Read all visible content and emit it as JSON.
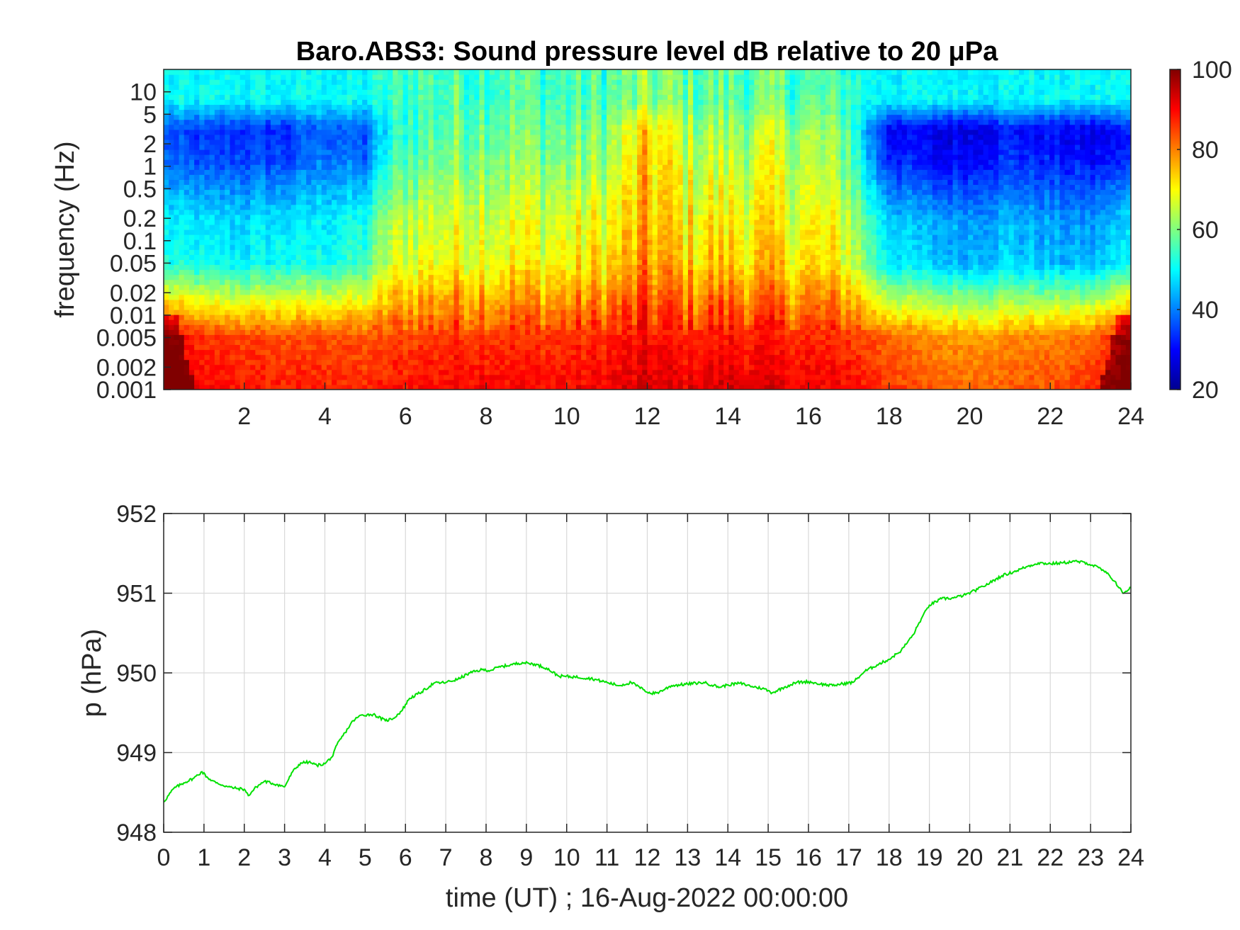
{
  "colors": {
    "trace": "#00e100",
    "grid": "#d9d9d9",
    "axis": "#262626",
    "colormap": "jet"
  },
  "chart_data": [
    {
      "type": "heatmap",
      "title": "Baro.ABS3: Sound pressure level dB relative to 20 μPa",
      "ylabel": "frequency (Hz)",
      "xlabel": "",
      "xlim": [
        0,
        24
      ],
      "ylim": [
        0.001,
        20
      ],
      "yscale": "log",
      "x_ticks": [
        2,
        4,
        6,
        8,
        10,
        12,
        14,
        16,
        18,
        20,
        22,
        24
      ],
      "y_ticks": [
        0.001,
        0.002,
        0.005,
        0.01,
        0.02,
        0.05,
        0.1,
        0.2,
        0.5,
        1,
        2,
        5,
        10
      ],
      "colorbar": {
        "range": [
          20,
          100
        ],
        "ticks": [
          20,
          40,
          60,
          80,
          100
        ],
        "colormap": "jet",
        "position": "right"
      },
      "grid": false,
      "level_profile_db": {
        "hours": [
          0,
          1,
          2,
          3,
          4,
          5,
          5.5,
          6,
          7,
          8,
          9,
          10,
          11,
          12,
          13,
          14,
          15,
          16,
          17,
          17.5,
          18,
          19,
          20,
          21,
          22,
          23,
          24
        ],
        "low_freq_band_0.001_to_0.01Hz": [
          92,
          86,
          85,
          84,
          84,
          83,
          84,
          85,
          86,
          87,
          86,
          86,
          87,
          89,
          88,
          89,
          88,
          87,
          86,
          84,
          82,
          79,
          78,
          79,
          80,
          82,
          90
        ],
        "mid_band_0.02_to_0.2Hz": [
          52,
          50,
          50,
          51,
          52,
          54,
          64,
          68,
          70,
          71,
          70,
          70,
          72,
          78,
          74,
          74,
          73,
          72,
          69,
          58,
          50,
          46,
          45,
          47,
          45,
          44,
          50
        ],
        "upper_band_0.5_to_2Hz": [
          38,
          35,
          36,
          35,
          40,
          38,
          50,
          57,
          60,
          62,
          61,
          60,
          62,
          74,
          66,
          64,
          66,
          64,
          60,
          44,
          33,
          30,
          30,
          34,
          32,
          30,
          33
        ],
        "top_band_5_to_20Hz": [
          50,
          50,
          50,
          50,
          50,
          50,
          53,
          55,
          56,
          57,
          56,
          55,
          56,
          60,
          58,
          57,
          57,
          56,
          55,
          51,
          50,
          50,
          50,
          50,
          50,
          50,
          50
        ]
      },
      "notable_events": [
        {
          "hour": 12,
          "description": "broadband high level"
        },
        {
          "hour": 14,
          "description": "narrow spike"
        }
      ]
    },
    {
      "type": "line",
      "title": "",
      "xlabel": "time (UT) ; 16-Aug-2022 00:00:00",
      "ylabel": "p (hPa)",
      "xlim": [
        0,
        24
      ],
      "ylim": [
        948,
        952
      ],
      "x_ticks": [
        0,
        1,
        2,
        3,
        4,
        5,
        6,
        7,
        8,
        9,
        10,
        11,
        12,
        13,
        14,
        15,
        16,
        17,
        18,
        19,
        20,
        21,
        22,
        23,
        24
      ],
      "y_ticks": [
        948,
        949,
        950,
        951,
        952
      ],
      "grid": true,
      "series": [
        {
          "x": [
            0,
            0.25,
            0.5,
            0.75,
            0.95,
            1.1,
            1.3,
            1.6,
            1.8,
            2.0,
            2.1,
            2.3,
            2.5,
            2.8,
            3.0,
            3.2,
            3.4,
            3.6,
            3.8,
            4.0,
            4.2,
            4.3,
            4.5,
            4.7,
            4.9,
            5.2,
            5.5,
            5.7,
            5.9,
            6.1,
            6.4,
            6.7,
            7.0,
            7.3,
            7.6,
            7.9,
            8.1,
            8.3,
            8.6,
            8.9,
            9.2,
            9.5,
            9.8,
            10.2,
            10.6,
            11.0,
            11.3,
            11.6,
            11.9,
            12.1,
            12.3,
            12.6,
            13.0,
            13.4,
            13.8,
            14.0,
            14.3,
            14.6,
            14.9,
            15.1,
            15.4,
            15.7,
            16.0,
            16.3,
            16.6,
            16.8,
            17.1,
            17.4,
            17.7,
            18.0,
            18.3,
            18.6,
            18.8,
            19.0,
            19.3,
            19.6,
            19.9,
            20.2,
            20.5,
            20.8,
            21.1,
            21.4,
            21.7,
            22.0,
            22.3,
            22.6,
            22.9,
            23.2,
            23.4,
            23.6,
            23.8,
            24.0
          ],
          "y": [
            948.38,
            948.55,
            948.62,
            948.68,
            948.76,
            948.68,
            948.62,
            948.57,
            948.55,
            948.54,
            948.46,
            948.57,
            948.64,
            948.6,
            948.57,
            948.76,
            948.87,
            948.88,
            948.84,
            948.86,
            948.96,
            949.1,
            949.25,
            949.4,
            949.47,
            949.48,
            949.4,
            949.43,
            949.52,
            949.68,
            949.76,
            949.87,
            949.88,
            949.92,
            950.0,
            950.04,
            950.03,
            950.07,
            950.1,
            950.13,
            950.11,
            950.06,
            949.96,
            949.95,
            949.93,
            949.88,
            949.84,
            949.88,
            949.79,
            949.74,
            949.76,
            949.84,
            949.86,
            949.88,
            949.82,
            949.85,
            949.87,
            949.83,
            949.8,
            949.75,
            949.82,
            949.88,
            949.89,
            949.86,
            949.84,
            949.86,
            949.88,
            950.02,
            950.1,
            950.17,
            950.28,
            950.48,
            950.68,
            950.85,
            950.93,
            950.94,
            950.98,
            951.05,
            951.13,
            951.22,
            951.27,
            951.33,
            951.38,
            951.37,
            951.38,
            951.4,
            951.38,
            951.32,
            951.25,
            951.15,
            951.0,
            951.07
          ]
        }
      ]
    }
  ],
  "panel_top": {
    "title": "Baro.ABS3: Sound pressure level dB relative to 20 μPa",
    "ylabel": "frequency (Hz)",
    "y_tick_labels": [
      "10",
      "5",
      "2",
      "1",
      "0.5",
      "0.2",
      "0.1",
      "0.05",
      "0.02",
      "0.01",
      "0.005",
      "0.002",
      "0.001"
    ],
    "x_tick_labels": [
      "2",
      "4",
      "6",
      "8",
      "10",
      "12",
      "14",
      "16",
      "18",
      "20",
      "22",
      "24"
    ],
    "colorbar_labels": [
      "100",
      "80",
      "60",
      "40",
      "20"
    ]
  },
  "panel_bottom": {
    "xlabel": "time (UT) ; 16-Aug-2022 00:00:00",
    "ylabel": "p (hPa)",
    "y_tick_labels": [
      "952",
      "951",
      "950",
      "949",
      "948"
    ],
    "x_tick_labels": [
      "0",
      "1",
      "2",
      "3",
      "4",
      "5",
      "6",
      "7",
      "8",
      "9",
      "10",
      "11",
      "12",
      "13",
      "14",
      "15",
      "16",
      "17",
      "18",
      "19",
      "20",
      "21",
      "22",
      "23",
      "24"
    ]
  }
}
